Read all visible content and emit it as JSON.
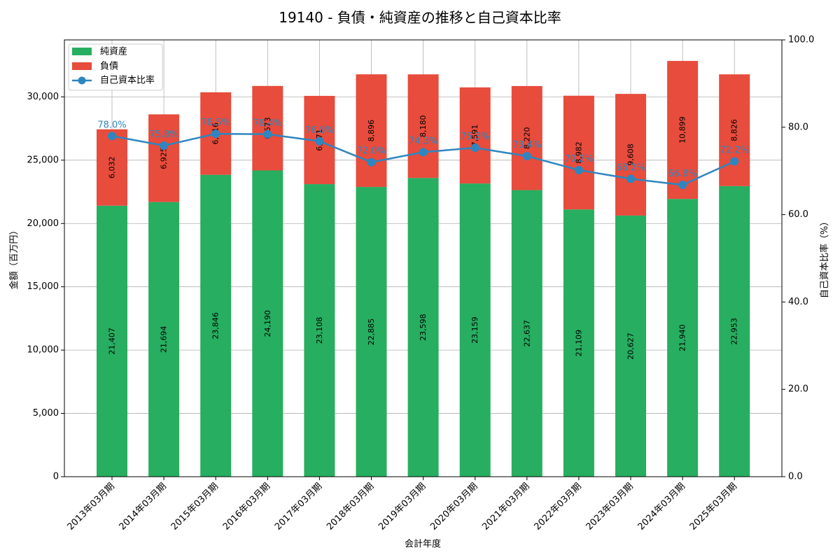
{
  "chart_data": {
    "type": "bar",
    "title": "19140 - 負債・純資産の推移と自己資本比率",
    "xlabel": "会計年度",
    "ylabel": "金額（百万円）",
    "y2label": "自己資本比率（%）",
    "ylim": [
      0,
      34500
    ],
    "y2lim": [
      0,
      100
    ],
    "yticks": [
      0,
      5000,
      10000,
      15000,
      20000,
      25000,
      30000
    ],
    "ytick_labels": [
      "0",
      "5,000",
      "10,000",
      "15,000",
      "20,000",
      "25,000",
      "30,000"
    ],
    "y2ticks": [
      0,
      20,
      40,
      60,
      80,
      100
    ],
    "y2tick_labels": [
      "0.0",
      "20.0",
      "40.0",
      "60.0",
      "80.0",
      "100.0"
    ],
    "grid": true,
    "legend_position": "top-left",
    "categories": [
      "2013年03月期",
      "2014年03月期",
      "2015年03月期",
      "2016年03月期",
      "2017年03月期",
      "2018年03月期",
      "2019年03月期",
      "2020年03月期",
      "2021年03月期",
      "2022年03月期",
      "2023年03月期",
      "2024年03月期",
      "2025年03月期"
    ],
    "series": [
      {
        "name": "純資産",
        "kind": "bar",
        "color": "#27ae60",
        "values": [
          21407,
          21694,
          23846,
          24190,
          23108,
          22885,
          23598,
          23159,
          22637,
          21109,
          20627,
          21940,
          22953
        ],
        "labels": [
          "21,407",
          "21,694",
          "23,846",
          "24,190",
          "23,108",
          "22,885",
          "23,598",
          "23,159",
          "22,637",
          "21,109",
          "20,627",
          "21,940",
          "22,953"
        ]
      },
      {
        "name": "負債",
        "kind": "bar",
        "color": "#e74c3c",
        "values": [
          6032,
          6925,
          6516,
          6673,
          6971,
          8896,
          8180,
          7591,
          8220,
          8982,
          9608,
          10899,
          8826
        ],
        "labels": [
          "6,032",
          "6,925",
          "6,516",
          "6,673",
          "6,971",
          "8,896",
          "8,180",
          "7,591",
          "8,220",
          "8,982",
          "9,608",
          "10,899",
          "8,826"
        ]
      },
      {
        "name": "自己資本比率",
        "kind": "line",
        "axis": "right",
        "color": "#2e86c1",
        "values": [
          78.0,
          75.8,
          78.5,
          78.4,
          76.8,
          72.0,
          74.3,
          75.3,
          73.4,
          70.2,
          68.2,
          66.8,
          72.2
        ],
        "labels": [
          "78.0%",
          "75.8%",
          "78.5%",
          "78.4%",
          "76.8%",
          "72.0%",
          "74.3%",
          "75.3%",
          "73.4%",
          "70.2%",
          "68.2%",
          "66.8%",
          "72.2%"
        ]
      }
    ]
  }
}
